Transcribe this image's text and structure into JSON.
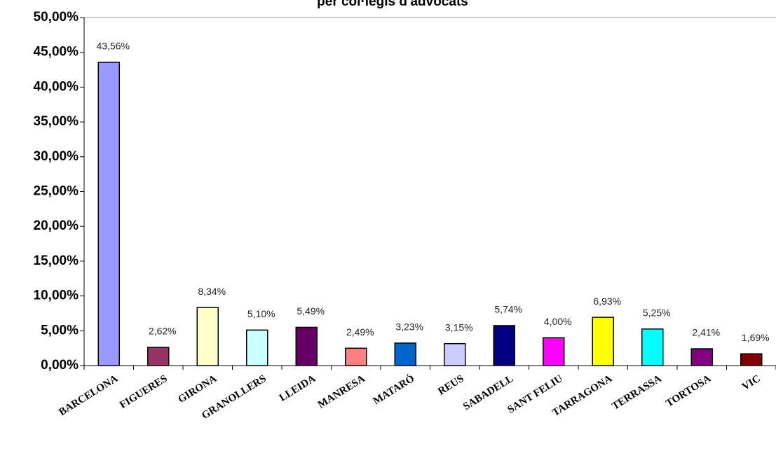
{
  "chart_data": {
    "type": "bar",
    "title": "per col·legis d'advocats",
    "categories": [
      "BARCELONA",
      "FIGUERES",
      "GIRONA",
      "GRANOLLERS",
      "LLEIDA",
      "MANRESA",
      "MATARÓ",
      "REUS",
      "SABADELL",
      "SANT FELIU",
      "TARRAGONA",
      "TERRASSA",
      "TORTOSA",
      "VIC"
    ],
    "values": [
      43.56,
      2.62,
      8.34,
      5.1,
      5.49,
      2.49,
      3.23,
      3.15,
      5.74,
      4.0,
      6.93,
      5.25,
      2.41,
      1.69
    ],
    "value_labels": [
      "43,56%",
      "2,62%",
      "8,34%",
      "5,10%",
      "5,49%",
      "2,49%",
      "3,23%",
      "3,15%",
      "5,74%",
      "4,00%",
      "6,93%",
      "5,25%",
      "2,41%",
      "1,69%"
    ],
    "colors": [
      "#9999ff",
      "#993366",
      "#ffffcc",
      "#ccffff",
      "#660066",
      "#ff8080",
      "#0066cc",
      "#ccccff",
      "#000080",
      "#ff00ff",
      "#ffff00",
      "#00ffff",
      "#800080",
      "#800000"
    ],
    "ylim": [
      0,
      50
    ],
    "yticks": [
      {
        "value": 0,
        "label": "0,00%"
      },
      {
        "value": 5,
        "label": "5,00%"
      },
      {
        "value": 10,
        "label": "10,00%"
      },
      {
        "value": 15,
        "label": "15,00%"
      },
      {
        "value": 20,
        "label": "20,00%"
      },
      {
        "value": 25,
        "label": "25,00%"
      },
      {
        "value": 30,
        "label": "30,00%"
      },
      {
        "value": 35,
        "label": "35,00%"
      },
      {
        "value": 40,
        "label": "40,00%"
      },
      {
        "value": 45,
        "label": "45,00%"
      },
      {
        "value": 50,
        "label": "50,00%"
      }
    ]
  }
}
